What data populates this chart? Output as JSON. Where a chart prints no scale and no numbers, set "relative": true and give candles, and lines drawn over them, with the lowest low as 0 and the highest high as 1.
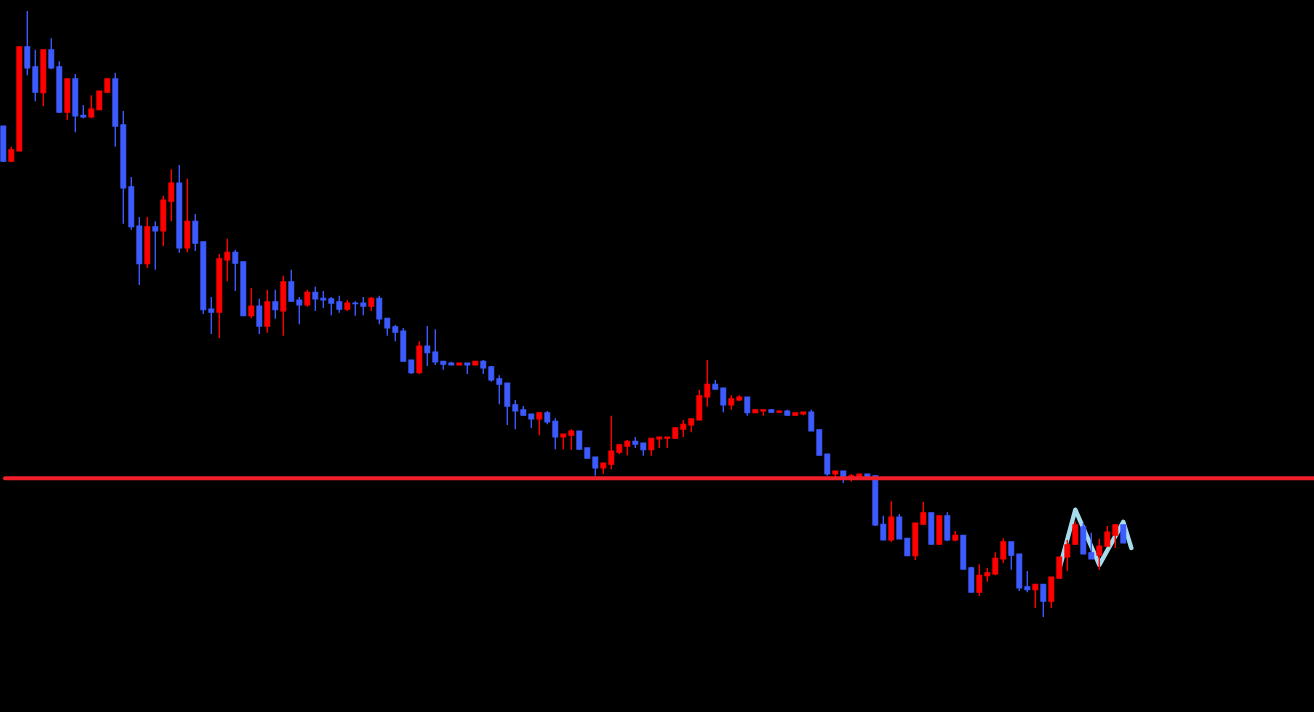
{
  "chart_data": {
    "type": "candlestick",
    "relative": true,
    "tick_labels": false,
    "categories": [
      null,
      null,
      null,
      null,
      null,
      null,
      null,
      null,
      null,
      null,
      null,
      null,
      null,
      null,
      null,
      null,
      null,
      null,
      null,
      null,
      null,
      null,
      null,
      null,
      null,
      null,
      null,
      null,
      null,
      null,
      null,
      null,
      null,
      null,
      null,
      null,
      null,
      null,
      null,
      null,
      null,
      null,
      null,
      null,
      null,
      null,
      null,
      null,
      null,
      null,
      null,
      null,
      null,
      null,
      null,
      null,
      null,
      null,
      null,
      null,
      null,
      null,
      null,
      null,
      null,
      null,
      null,
      null,
      null,
      null,
      null,
      null,
      null,
      null,
      null,
      null,
      null,
      null,
      null,
      null,
      null,
      null,
      null,
      null,
      null,
      null,
      null,
      null,
      null,
      null,
      null,
      null,
      null,
      null,
      null,
      null,
      null,
      null,
      null,
      null,
      null,
      null,
      null,
      null,
      null,
      null,
      null,
      null,
      null,
      null,
      null,
      null,
      null,
      null,
      null,
      null,
      null,
      null,
      null,
      null,
      null,
      null,
      null,
      null,
      null,
      null,
      null,
      null,
      null,
      null,
      null,
      null,
      null,
      null,
      null,
      null,
      null,
      null,
      null,
      null,
      null,
      null
    ],
    "ohlc": [
      [
        0.81,
        0.81,
        0.751,
        0.752
      ],
      [
        0.752,
        0.776,
        0.751,
        0.771
      ],
      [
        0.769,
        0.941,
        0.769,
        0.941
      ],
      [
        0.941,
        1,
        0.894,
        0.906
      ],
      [
        0.908,
        0.936,
        0.851,
        0.866
      ],
      [
        0.865,
        0.936,
        0.843,
        0.936
      ],
      [
        0.936,
        0.955,
        0.904,
        0.906
      ],
      [
        0.908,
        0.917,
        0.832,
        0.833
      ],
      [
        0.833,
        0.888,
        0.82,
        0.888
      ],
      [
        0.888,
        0.896,
        0.8,
        0.827
      ],
      [
        0.828,
        0.845,
        0.823,
        0.825
      ],
      [
        0.825,
        0.861,
        0.823,
        0.838
      ],
      [
        0.837,
        0.868,
        0.837,
        0.868
      ],
      [
        0.866,
        0.888,
        0.865,
        0.888
      ],
      [
        0.888,
        0.898,
        0.776,
        0.81
      ],
      [
        0.812,
        0.835,
        0.649,
        0.708
      ],
      [
        0.71,
        0.726,
        0.639,
        0.644
      ],
      [
        0.645,
        0.66,
        0.548,
        0.583
      ],
      [
        0.583,
        0.66,
        0.576,
        0.644
      ],
      [
        0.644,
        0.653,
        0.573,
        0.637
      ],
      [
        0.637,
        0.695,
        0.612,
        0.688
      ],
      [
        0.686,
        0.739,
        0.653,
        0.716
      ],
      [
        0.716,
        0.746,
        0.601,
        0.609
      ],
      [
        0.609,
        0.723,
        0.602,
        0.653
      ],
      [
        0.653,
        0.665,
        0.604,
        0.617
      ],
      [
        0.619,
        0.619,
        0.5,
        0.507
      ],
      [
        0.508,
        0.528,
        0.467,
        0.503
      ],
      [
        0.503,
        0.599,
        0.46,
        0.591
      ],
      [
        0.589,
        0.624,
        0.554,
        0.602
      ],
      [
        0.602,
        0.606,
        0.538,
        0.584
      ],
      [
        0.586,
        0.587,
        0.497,
        0.497
      ],
      [
        0.497,
        0.543,
        0.493,
        0.513
      ],
      [
        0.513,
        0.525,
        0.467,
        0.48
      ],
      [
        0.48,
        0.54,
        0.469,
        0.52
      ],
      [
        0.52,
        0.54,
        0.492,
        0.507
      ],
      [
        0.505,
        0.563,
        0.464,
        0.553
      ],
      [
        0.553,
        0.573,
        0.521,
        0.521
      ],
      [
        0.523,
        0.528,
        0.483,
        0.515
      ],
      [
        0.515,
        0.54,
        0.512,
        0.536
      ],
      [
        0.536,
        0.545,
        0.505,
        0.525
      ],
      [
        0.526,
        0.538,
        0.51,
        0.523
      ],
      [
        0.525,
        0.528,
        0.498,
        0.518
      ],
      [
        0.52,
        0.53,
        0.502,
        0.508
      ],
      [
        0.508,
        0.523,
        0.505,
        0.518
      ],
      [
        0.518,
        0.521,
        0.497,
        0.517
      ],
      [
        0.518,
        0.528,
        0.498,
        0.513
      ],
      [
        0.513,
        0.528,
        0.505,
        0.526
      ],
      [
        0.526,
        0.53,
        0.483,
        0.492
      ],
      [
        0.493,
        0.493,
        0.464,
        0.477
      ],
      [
        0.479,
        0.482,
        0.455,
        0.47
      ],
      [
        0.472,
        0.477,
        0.422,
        0.422
      ],
      [
        0.424,
        0.424,
        0.401,
        0.403
      ],
      [
        0.403,
        0.455,
        0.401,
        0.447
      ],
      [
        0.447,
        0.48,
        0.414,
        0.436
      ],
      [
        0.437,
        0.475,
        0.416,
        0.421
      ],
      [
        0.422,
        0.422,
        0.408,
        0.417
      ],
      [
        0.419,
        0.421,
        0.416,
        0.416
      ],
      [
        0.416,
        0.419,
        0.416,
        0.419
      ],
      [
        0.419,
        0.419,
        0.401,
        0.416
      ],
      [
        0.416,
        0.422,
        0.416,
        0.422
      ],
      [
        0.422,
        0.424,
        0.401,
        0.411
      ],
      [
        0.413,
        0.414,
        0.388,
        0.391
      ],
      [
        0.393,
        0.399,
        0.351,
        0.384
      ],
      [
        0.386,
        0.386,
        0.317,
        0.348
      ],
      [
        0.35,
        0.358,
        0.31,
        0.34
      ],
      [
        0.342,
        0.348,
        0.332,
        0.333
      ],
      [
        0.335,
        0.335,
        0.312,
        0.327
      ],
      [
        0.327,
        0.337,
        0.3,
        0.337
      ],
      [
        0.337,
        0.34,
        0.318,
        0.322
      ],
      [
        0.323,
        0.328,
        0.277,
        0.297
      ],
      [
        0.297,
        0.302,
        0.277,
        0.302
      ],
      [
        0.3,
        0.31,
        0.276,
        0.307
      ],
      [
        0.307,
        0.307,
        0.276,
        0.277
      ],
      [
        0.279,
        0.279,
        0.262,
        0.262
      ],
      [
        0.264,
        0.264,
        0.233,
        0.246
      ],
      [
        0.246,
        0.254,
        0.236,
        0.254
      ],
      [
        0.252,
        0.332,
        0.244,
        0.274
      ],
      [
        0.272,
        0.285,
        0.269,
        0.284
      ],
      [
        0.282,
        0.292,
        0.267,
        0.29
      ],
      [
        0.29,
        0.297,
        0.279,
        0.285
      ],
      [
        0.287,
        0.287,
        0.266,
        0.276
      ],
      [
        0.276,
        0.295,
        0.266,
        0.295
      ],
      [
        0.294,
        0.297,
        0.279,
        0.297
      ],
      [
        0.295,
        0.297,
        0.279,
        0.297
      ],
      [
        0.295,
        0.312,
        0.294,
        0.312
      ],
      [
        0.31,
        0.325,
        0.297,
        0.318
      ],
      [
        0.317,
        0.327,
        0.305,
        0.327
      ],
      [
        0.325,
        0.375,
        0.325,
        0.365
      ],
      [
        0.363,
        0.424,
        0.347,
        0.384
      ],
      [
        0.384,
        0.391,
        0.376,
        0.376
      ],
      [
        0.378,
        0.378,
        0.338,
        0.35
      ],
      [
        0.35,
        0.366,
        0.342,
        0.36
      ],
      [
        0.358,
        0.366,
        0.356,
        0.363
      ],
      [
        0.363,
        0.363,
        0.332,
        0.337
      ],
      [
        0.337,
        0.342,
        0.337,
        0.342
      ],
      [
        0.34,
        0.342,
        0.332,
        0.342
      ],
      [
        0.342,
        0.342,
        0.338,
        0.338
      ],
      [
        0.338,
        0.34,
        0.337,
        0.34
      ],
      [
        0.34,
        0.342,
        0.333,
        0.333
      ],
      [
        0.333,
        0.337,
        0.333,
        0.337
      ],
      [
        0.335,
        0.338,
        0.333,
        0.338
      ],
      [
        0.338,
        0.342,
        0.307,
        0.307
      ],
      [
        0.309,
        0.31,
        0.267,
        0.267
      ],
      [
        0.269,
        0.269,
        0.233,
        0.236
      ],
      [
        0.236,
        0.241,
        0.231,
        0.241
      ],
      [
        0.241,
        0.241,
        0.221,
        0.231
      ],
      [
        0.231,
        0.236,
        0.223,
        0.233
      ],
      [
        0.231,
        0.236,
        0.231,
        0.236
      ],
      [
        0.236,
        0.236,
        0.231,
        0.231
      ],
      [
        0.233,
        0.233,
        0.15,
        0.152
      ],
      [
        0.153,
        0.167,
        0.127,
        0.127
      ],
      [
        0.127,
        0.191,
        0.124,
        0.165
      ],
      [
        0.165,
        0.17,
        0.129,
        0.129
      ],
      [
        0.13,
        0.13,
        0.101,
        0.101
      ],
      [
        0.101,
        0.155,
        0.094,
        0.155
      ],
      [
        0.153,
        0.19,
        0.153,
        0.172
      ],
      [
        0.172,
        0.172,
        0.12,
        0.12
      ],
      [
        0.12,
        0.167,
        0.12,
        0.167
      ],
      [
        0.167,
        0.173,
        0.125,
        0.127
      ],
      [
        0.127,
        0.142,
        0.125,
        0.135
      ],
      [
        0.135,
        0.135,
        0.079,
        0.079
      ],
      [
        0.081,
        0.083,
        0.041,
        0.041
      ],
      [
        0.041,
        0.087,
        0.035,
        0.069
      ],
      [
        0.068,
        0.081,
        0.058,
        0.073
      ],
      [
        0.071,
        0.107,
        0.069,
        0.097
      ],
      [
        0.096,
        0.13,
        0.089,
        0.124
      ],
      [
        0.124,
        0.124,
        0.078,
        0.102
      ],
      [
        0.104,
        0.104,
        0.043,
        0.048
      ],
      [
        0.05,
        0.076,
        0.041,
        0.045
      ],
      [
        0.045,
        0.054,
        0.015,
        0.054
      ],
      [
        0.054,
        0.054,
        0,
        0.026
      ],
      [
        0.026,
        0.066,
        0.015,
        0.066
      ],
      [
        0.064,
        0.099,
        0.064,
        0.099
      ],
      [
        0.099,
        0.127,
        0.076,
        0.119
      ],
      [
        0.12,
        0.157,
        0.12,
        0.152
      ],
      [
        0.149,
        0.155,
        0.104,
        0.104
      ],
      [
        0.106,
        0.139,
        0.096,
        0.096
      ],
      [
        0.102,
        0.129,
        0.078,
        0.117
      ],
      [
        0.117,
        0.15,
        0.117,
        0.14
      ],
      [
        0.135,
        0.153,
        0.114,
        0.152
      ],
      [
        0.152,
        0.152,
        0.122,
        0.122
      ],
      null
    ],
    "colors": [
      "#3d5afe",
      "#ff0000",
      "#ff0000",
      "#3d5afe",
      "#3d5afe",
      "#ff0000",
      "#3d5afe",
      "#3d5afe",
      "#ff0000",
      "#3d5afe",
      "#3d5afe",
      "#ff0000",
      "#ff0000",
      "#ff0000",
      "#3d5afe",
      "#3d5afe",
      "#3d5afe",
      "#3d5afe",
      "#ff0000",
      "#3d5afe",
      "#ff0000",
      "#ff0000",
      "#3d5afe",
      "#ff0000",
      "#3d5afe",
      "#3d5afe",
      "#3d5afe",
      "#ff0000",
      "#ff0000",
      "#3d5afe",
      "#3d5afe",
      "#ff0000",
      "#3d5afe",
      "#ff0000",
      "#3d5afe",
      "#ff0000",
      "#3d5afe",
      "#3d5afe",
      "#ff0000",
      "#3d5afe",
      "#3d5afe",
      "#3d5afe",
      "#3d5afe",
      "#ff0000",
      "#3d5afe",
      "#3d5afe",
      "#ff0000",
      "#3d5afe",
      "#3d5afe",
      "#3d5afe",
      "#3d5afe",
      "#3d5afe",
      "#ff0000",
      "#3d5afe",
      "#3d5afe",
      "#3d5afe",
      "#3d5afe",
      "#ff0000",
      "#3d5afe",
      "#ff0000",
      "#3d5afe",
      "#3d5afe",
      "#3d5afe",
      "#3d5afe",
      "#3d5afe",
      "#3d5afe",
      "#3d5afe",
      "#ff0000",
      "#3d5afe",
      "#3d5afe",
      "#ff0000",
      "#ff0000",
      "#3d5afe",
      "#3d5afe",
      "#3d5afe",
      "#ff0000",
      "#ff0000",
      "#ff0000",
      "#ff0000",
      "#3d5afe",
      "#3d5afe",
      "#ff0000",
      "#ff0000",
      "#ff0000",
      "#ff0000",
      "#ff0000",
      "#ff0000",
      "#ff0000",
      "#ff0000",
      "#3d5afe",
      "#3d5afe",
      "#ff0000",
      "#ff0000",
      "#3d5afe",
      "#ff0000",
      "#ff0000",
      "#3d5afe",
      "#ff0000",
      "#3d5afe",
      "#ff0000",
      "#ff0000",
      "#3d5afe",
      "#3d5afe",
      "#3d5afe",
      "#ff0000",
      "#3d5afe",
      "#ff0000",
      "#ff0000",
      "#3d5afe",
      "#3d5afe",
      "#3d5afe",
      "#ff0000",
      "#3d5afe",
      "#3d5afe",
      "#ff0000",
      "#ff0000",
      "#3d5afe",
      "#ff0000",
      "#3d5afe",
      "#ff0000",
      "#3d5afe",
      "#3d5afe",
      "#ff0000",
      "#ff0000",
      "#ff0000",
      "#ff0000",
      "#3d5afe",
      "#3d5afe",
      "#3d5afe",
      "#ff0000",
      "#3d5afe",
      "#ff0000",
      "#ff0000",
      "#ff0000",
      "#ff0000",
      "#3d5afe",
      "#3d5afe",
      "#ff0000",
      "#ff0000",
      "#ff0000",
      "#3d5afe",
      null
    ],
    "series": [
      {
        "type": "line",
        "color": "#a6dcec",
        "values": [
          null,
          null,
          null,
          null,
          null,
          null,
          null,
          null,
          null,
          null,
          null,
          null,
          null,
          null,
          null,
          null,
          null,
          null,
          null,
          null,
          null,
          null,
          null,
          null,
          null,
          null,
          null,
          null,
          null,
          null,
          null,
          null,
          null,
          null,
          null,
          null,
          null,
          null,
          null,
          null,
          null,
          null,
          null,
          null,
          null,
          null,
          null,
          null,
          null,
          null,
          null,
          null,
          null,
          null,
          null,
          null,
          null,
          null,
          null,
          null,
          null,
          null,
          null,
          null,
          null,
          null,
          null,
          null,
          null,
          null,
          null,
          null,
          null,
          null,
          null,
          null,
          null,
          null,
          null,
          null,
          null,
          null,
          null,
          null,
          null,
          null,
          null,
          null,
          null,
          null,
          null,
          null,
          null,
          null,
          null,
          null,
          null,
          null,
          null,
          null,
          null,
          null,
          null,
          null,
          null,
          null,
          null,
          null,
          null,
          null,
          null,
          null,
          null,
          null,
          null,
          null,
          null,
          null,
          null,
          null,
          null,
          null,
          null,
          null,
          null,
          null,
          null,
          null,
          null,
          null,
          null,
          null,
          0.079,
          null,
          0.177,
          null,
          null,
          0.086,
          null,
          null,
          0.157,
          0.114
        ]
      }
    ],
    "ref_lines": [
      {
        "axis": "y",
        "value": 0.229,
        "color": "#f0202a"
      }
    ]
  }
}
